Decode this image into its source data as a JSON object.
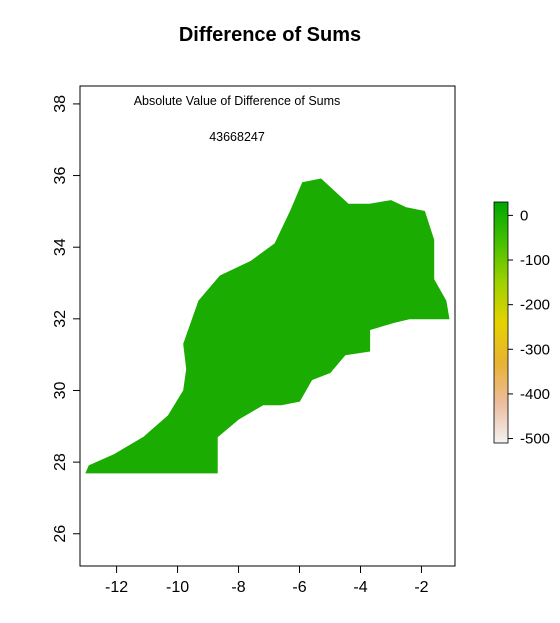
{
  "title": "Difference of Sums",
  "annotation": {
    "label": "Absolute Value of Difference of Sums",
    "value": "43668247"
  },
  "chart_data": {
    "type": "heatmap",
    "title": "Difference of Sums",
    "xlabel": "",
    "ylabel": "",
    "xlim": [
      -13.2,
      -0.9
    ],
    "ylim": [
      25.1,
      38.5
    ],
    "x_ticks": [
      -12,
      -10,
      -8,
      -6,
      -4,
      -2
    ],
    "y_ticks": [
      26,
      28,
      30,
      32,
      34,
      36,
      38
    ],
    "grid": false,
    "fill_color": "#1aac00",
    "region_outline": [
      [
        -13.0,
        27.7
      ],
      [
        -8.7,
        27.7
      ],
      [
        -8.7,
        28.7
      ],
      [
        -8.0,
        29.2
      ],
      [
        -7.2,
        29.6
      ],
      [
        -6.6,
        29.6
      ],
      [
        -6.0,
        29.7
      ],
      [
        -5.6,
        30.3
      ],
      [
        -5.0,
        30.5
      ],
      [
        -4.5,
        31.0
      ],
      [
        -3.7,
        31.1
      ],
      [
        -3.7,
        31.7
      ],
      [
        -2.9,
        31.9
      ],
      [
        -2.4,
        32.0
      ],
      [
        -1.1,
        32.0
      ],
      [
        -1.2,
        32.5
      ],
      [
        -1.6,
        33.1
      ],
      [
        -1.6,
        34.2
      ],
      [
        -1.9,
        35.0
      ],
      [
        -2.5,
        35.1
      ],
      [
        -3.0,
        35.3
      ],
      [
        -3.7,
        35.2
      ],
      [
        -4.4,
        35.2
      ],
      [
        -5.3,
        35.9
      ],
      [
        -5.9,
        35.8
      ],
      [
        -6.3,
        35.0
      ],
      [
        -6.8,
        34.1
      ],
      [
        -7.6,
        33.6
      ],
      [
        -8.6,
        33.2
      ],
      [
        -9.3,
        32.5
      ],
      [
        -9.8,
        31.3
      ],
      [
        -9.7,
        30.6
      ],
      [
        -9.8,
        30.0
      ],
      [
        -10.3,
        29.3
      ],
      [
        -11.1,
        28.7
      ],
      [
        -12.1,
        28.2
      ],
      [
        -12.9,
        27.9
      ],
      [
        -13.0,
        27.7
      ]
    ],
    "legend": {
      "placement": "right",
      "ticks": [
        0,
        -1000000,
        -2000000,
        -3000000,
        -4000000,
        -5000000
      ],
      "tick_labels": [
        "0",
        "-100",
        "-200",
        "-300",
        "-400",
        "-500"
      ],
      "range": [
        -5100000,
        300000
      ],
      "colors": [
        "#f2f2f2",
        "#edbc9e",
        "#e8b232",
        "#e5d200",
        "#9ed100",
        "#46c000",
        "#00a600"
      ]
    }
  }
}
